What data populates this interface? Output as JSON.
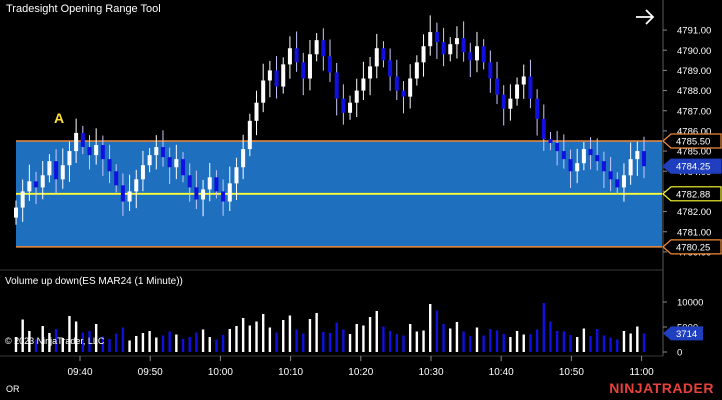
{
  "title": "Tradesight Opening Range Tool",
  "volume_label": "Volume up down(ES MAR24 (1 Minute))",
  "copyright": "© 2023 NinjaTrader, LLC",
  "footer_label": "OR",
  "brand": "NINJATRADER",
  "marker_label": "A",
  "colors": {
    "background": "#000000",
    "up_candle": "#ffffff",
    "down_candle": "#1010e0",
    "range_fill": "#1f6fbf",
    "range_border": "#f08a3a",
    "mid_line": "#ffff33",
    "brand": "#e8403a",
    "marker": "#ffe033"
  },
  "chart_data": {
    "type": "candlestick",
    "price_axis": {
      "min": 4779.5,
      "max": 4791.5,
      "ticks": [
        "4791.00",
        "4790.00",
        "4789.00",
        "4788.00",
        "4787.00",
        "4786.00",
        "4785.00",
        "4784.00",
        "4783.00",
        "4782.00",
        "4781.00",
        "4780.00"
      ]
    },
    "time_axis": {
      "ticks": [
        "09:40",
        "09:50",
        "10:00",
        "10:10",
        "10:20",
        "10:30",
        "10:40",
        "10:50",
        "11:00"
      ]
    },
    "badges": [
      {
        "text": "4785.50",
        "value": 4785.5,
        "style": "orange"
      },
      {
        "text": "4784.25",
        "value": 4784.25,
        "style": "current"
      },
      {
        "text": "4782.88",
        "value": 4782.88,
        "style": "yellow"
      },
      {
        "text": "4780.25",
        "value": 4780.25,
        "style": "orange"
      }
    ],
    "opening_range": {
      "high": 4785.5,
      "low": 4780.25,
      "mid": 4782.88
    },
    "volume_axis": {
      "ticks": [
        "10000",
        "5000",
        "0"
      ],
      "max": 12000
    },
    "volume_badge": {
      "text": "3714",
      "value": 3714
    },
    "closes": [
      4782.2,
      4783.0,
      4783.5,
      4783.2,
      4783.8,
      4784.5,
      4783.6,
      4784.3,
      4785.0,
      4785.9,
      4785.2,
      4784.8,
      4785.3,
      4784.6,
      4784.0,
      4783.3,
      4782.5,
      4783.0,
      4783.6,
      4784.3,
      4784.8,
      4785.2,
      4784.7,
      4784.2,
      4784.6,
      4783.8,
      4783.2,
      4782.6,
      4783.1,
      4783.7,
      4783.0,
      4782.5,
      4783.4,
      4784.2,
      4785.1,
      4786.5,
      4787.4,
      4788.5,
      4789.0,
      4788.2,
      4789.3,
      4790.1,
      4789.4,
      4788.6,
      4789.8,
      4790.5,
      4789.7,
      4788.9,
      4787.6,
      4786.9,
      4787.4,
      4788.0,
      4788.6,
      4789.2,
      4790.1,
      4789.5,
      4788.7,
      4788.0,
      4787.7,
      4788.6,
      4789.4,
      4790.2,
      4790.9,
      4790.4,
      4789.8,
      4790.3,
      4790.6,
      4789.9,
      4789.5,
      4790.2,
      4789.4,
      4788.6,
      4787.8,
      4787.1,
      4787.6,
      4788.3,
      4788.7,
      4787.6,
      4786.6,
      4785.6,
      4785.4,
      4785.0,
      4784.6,
      4784.0,
      4784.4,
      4785.1,
      4784.8,
      4784.5,
      4784.0,
      4783.6,
      4783.2,
      4783.8,
      4784.6,
      4785.0,
      4784.25
    ],
    "volumes": [
      3000,
      6500,
      4200,
      2500,
      5200,
      3800,
      4600,
      2800,
      7200,
      6100,
      3900,
      4200,
      5600,
      3100,
      2600,
      3700,
      4900,
      2300,
      3200,
      3800,
      4200,
      2900,
      3300,
      4100,
      3500,
      2600,
      3000,
      3900,
      4500,
      3000,
      2500,
      3400,
      4600,
      5200,
      6800,
      5300,
      6100,
      7600,
      4900,
      3900,
      6400,
      7300,
      4500,
      3700,
      6600,
      7800,
      4000,
      3800,
      5900,
      4500,
      3600,
      5600,
      5300,
      7000,
      8200,
      5100,
      4200,
      3600,
      3300,
      5600,
      4100,
      4300,
      9600,
      8300,
      5600,
      4700,
      6000,
      4100,
      3200,
      4900,
      3300,
      4600,
      4300,
      3600,
      3000,
      4200,
      3500,
      3600,
      4500,
      9800,
      6100,
      4200,
      4100,
      3400,
      3000,
      4700,
      3200,
      4600,
      3300,
      2900,
      2500,
      4200,
      3700,
      5100,
      3714
    ]
  }
}
